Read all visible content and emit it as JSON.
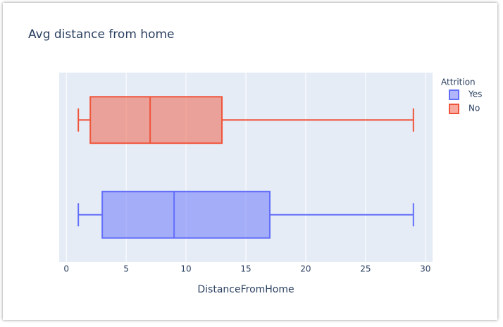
{
  "chart_data": {
    "type": "box",
    "title": "Avg distance from home",
    "x_label": "DistanceFromHome",
    "legend_title": "Attrition",
    "orientation": "horizontal",
    "xlim": [
      -0.6,
      30.6
    ],
    "xticks": [
      0,
      5,
      10,
      15,
      20,
      25,
      30
    ],
    "grid": true,
    "series": [
      {
        "name": "Yes",
        "color": "#636efa",
        "min": 1,
        "q1": 3,
        "median": 9,
        "q3": 17,
        "max": 29
      },
      {
        "name": "No",
        "color": "#ef553b",
        "min": 1,
        "q1": 2,
        "median": 7,
        "q3": 13,
        "max": 29
      }
    ]
  }
}
